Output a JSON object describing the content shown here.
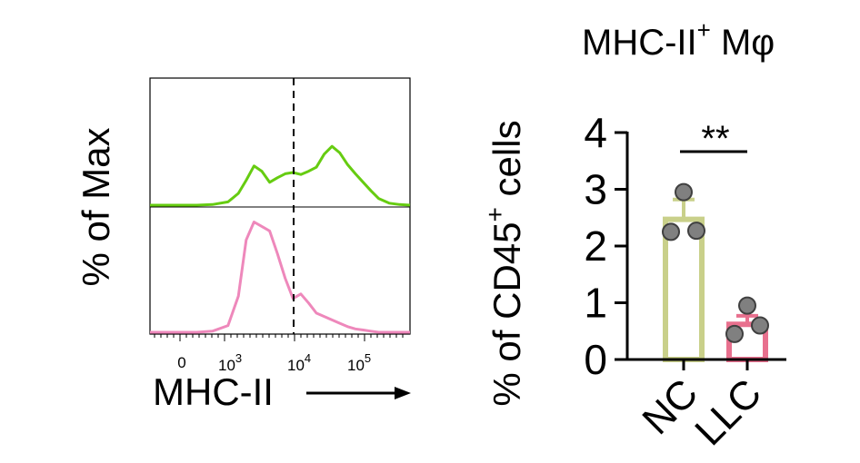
{
  "chart_data": [
    {
      "type": "histogram-overlay",
      "ylabel": "% of Max",
      "xlabel": "MHC-II",
      "x_scale": "biexponential",
      "x_tick_labels": [
        {
          "base": "0",
          "exp": ""
        },
        {
          "base": "10",
          "exp": "3"
        },
        {
          "base": "10",
          "exp": "4"
        },
        {
          "base": "10",
          "exp": "5"
        }
      ],
      "gate_position": 10000,
      "colors": {
        "top": "#66cc11",
        "bottom": "#ee88bb"
      },
      "series": [
        {
          "position": "top",
          "x": [
            0,
            60,
            90,
            120,
            150,
            170,
            185,
            200,
            215,
            230,
            245,
            260,
            275,
            290,
            305,
            320,
            335,
            350,
            365,
            380,
            395,
            410,
            425,
            440,
            460,
            480,
            500
          ],
          "values": [
            0,
            0,
            0,
            1,
            5,
            18,
            38,
            60,
            52,
            35,
            42,
            48,
            50,
            47,
            52,
            58,
            78,
            90,
            80,
            62,
            48,
            35,
            22,
            10,
            3,
            1,
            0
          ]
        },
        {
          "position": "bottom",
          "x": [
            0,
            60,
            90,
            120,
            150,
            170,
            185,
            200,
            215,
            230,
            245,
            260,
            275,
            290,
            305,
            320,
            335,
            350,
            365,
            380,
            395,
            410,
            425,
            440,
            460,
            480,
            500
          ],
          "values": [
            0,
            0,
            0,
            1,
            6,
            32,
            82,
            98,
            94,
            90,
            70,
            48,
            30,
            34,
            26,
            17,
            14,
            11,
            8,
            5,
            3,
            2,
            1,
            0,
            0,
            0,
            0
          ]
        }
      ]
    },
    {
      "type": "bar",
      "title": "MHC-II",
      "title_sup": "+",
      "title_suffix": " Mφ",
      "ylabel_prefix": "% of CD45",
      "ylabel_sup": "+",
      "ylabel_suffix": " cells",
      "categories": [
        "NC",
        "LLC"
      ],
      "values": [
        2.47,
        0.62
      ],
      "errors": [
        0.35,
        0.15
      ],
      "points": [
        [
          2.95,
          2.25,
          2.27
        ],
        [
          0.95,
          0.45,
          0.6
        ]
      ],
      "ylim": [
        0,
        4
      ],
      "yticks": [
        "0",
        "1",
        "2",
        "3",
        "4"
      ],
      "significance": "**",
      "colors": {
        "NC": "#c9d08a",
        "LLC": "#e8708e",
        "points": "#808080"
      }
    }
  ]
}
